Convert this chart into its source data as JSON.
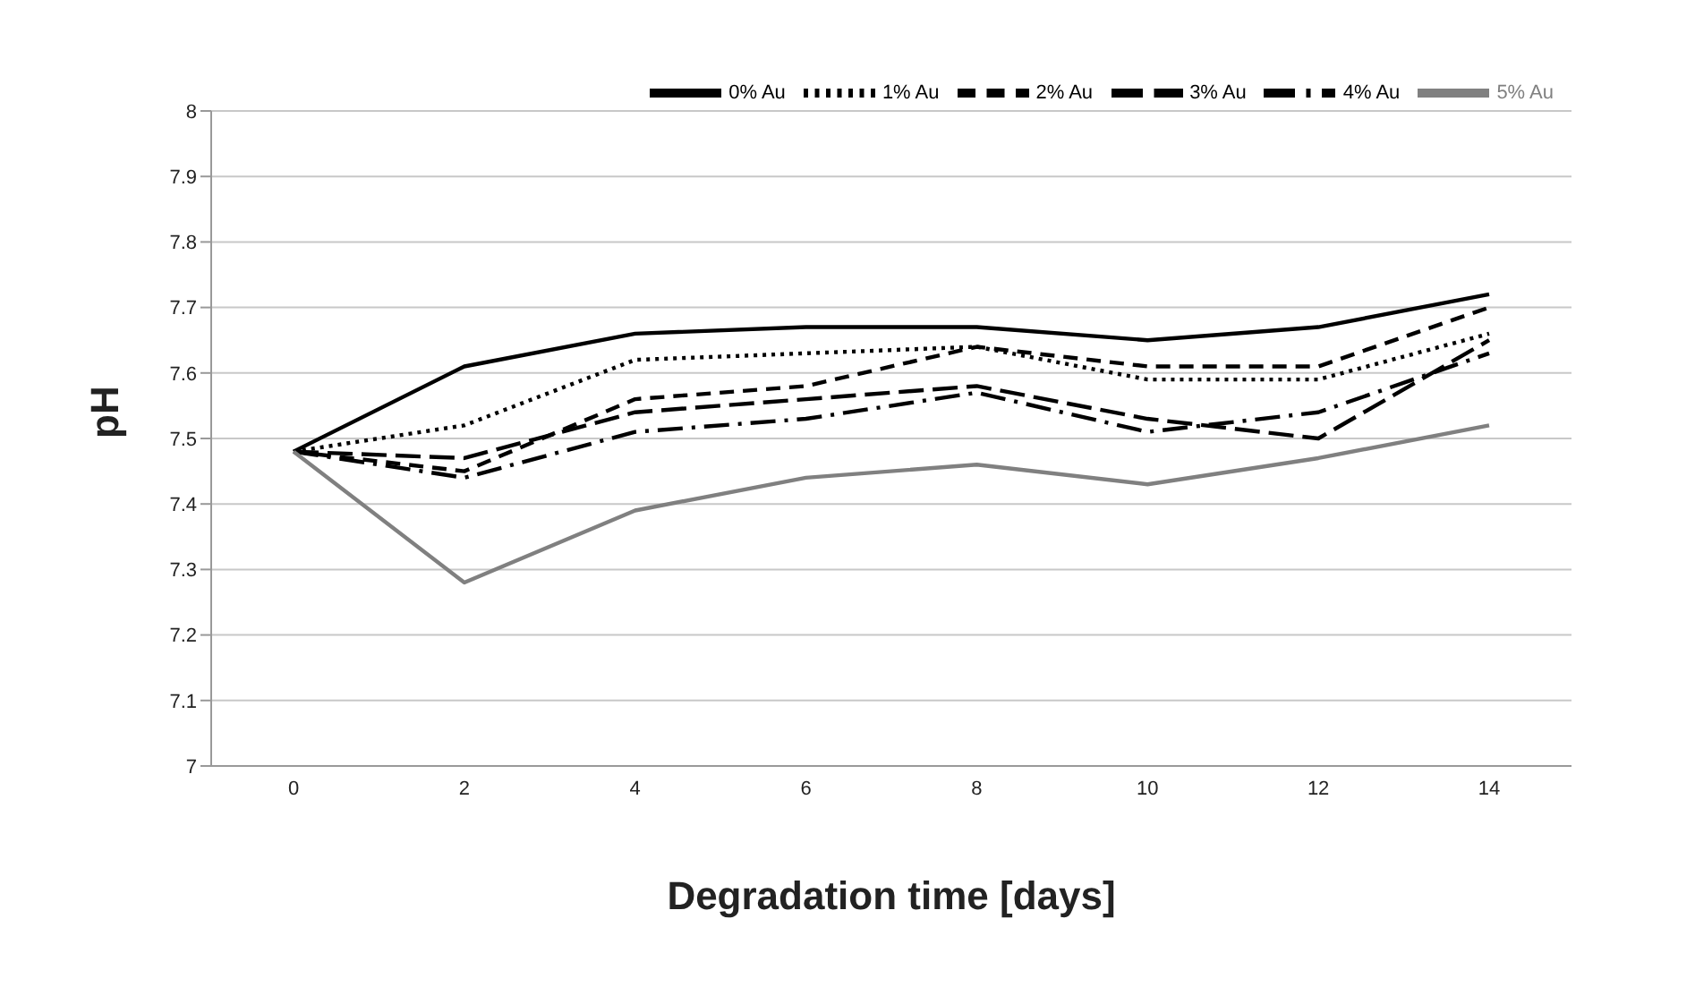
{
  "chart_data": {
    "type": "line",
    "xlabel": "Degradation time [days]",
    "ylabel": "pH",
    "categories": [
      "0",
      "2",
      "4",
      "6",
      "8",
      "10",
      "12",
      "14"
    ],
    "series": [
      {
        "name": "0% Au",
        "color": "#000000",
        "line_style": "solid",
        "values": [
          7.48,
          7.61,
          7.66,
          7.67,
          7.67,
          7.65,
          7.67,
          7.72
        ]
      },
      {
        "name": "1% Au",
        "color": "#000000",
        "line_style": "dotted",
        "values": [
          7.48,
          7.52,
          7.62,
          7.63,
          7.64,
          7.59,
          7.59,
          7.66
        ]
      },
      {
        "name": "2% Au",
        "color": "#000000",
        "line_style": "dashed",
        "values": [
          7.48,
          7.45,
          7.56,
          7.58,
          7.64,
          7.61,
          7.61,
          7.7
        ]
      },
      {
        "name": "3% Au",
        "color": "#000000",
        "line_style": "dashed",
        "values": [
          7.48,
          7.47,
          7.54,
          7.56,
          7.58,
          7.53,
          7.5,
          7.65
        ]
      },
      {
        "name": "4% Au",
        "color": "#000000",
        "line_style": "dashed",
        "values": [
          7.48,
          7.44,
          7.51,
          7.53,
          7.57,
          7.51,
          7.54,
          7.63
        ]
      },
      {
        "name": "5% Au",
        "color": "#808080",
        "line_style": "solid",
        "values": [
          7.48,
          7.28,
          7.39,
          7.44,
          7.46,
          7.43,
          7.47,
          7.52
        ]
      }
    ],
    "ylim": [
      7,
      8
    ],
    "yticks": [
      7,
      7.1,
      7.2,
      7.3,
      7.4,
      7.5,
      7.6,
      7.7,
      7.8,
      7.9,
      8
    ],
    "grid": "y",
    "legend": "top",
    "marker": "none"
  }
}
